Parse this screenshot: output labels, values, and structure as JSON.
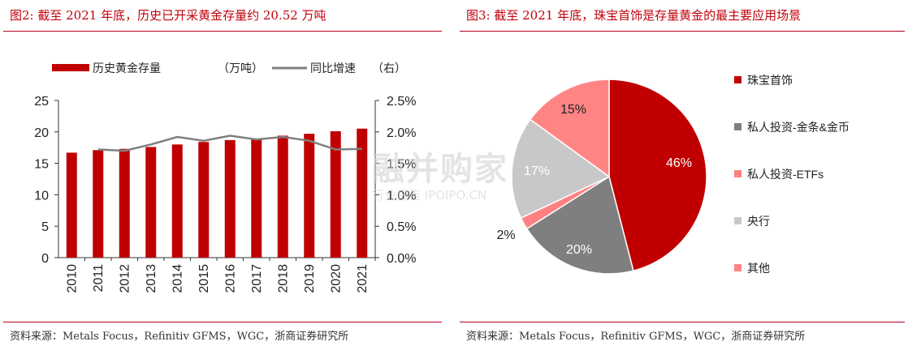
{
  "left": {
    "title": "图2:  截至 2021 年底，历史已开采黄金存量约 20.52 万吨",
    "source": "资料来源：Metals Focus，Refinitiv GFMS，WGC，浙商证券研究所",
    "legend": {
      "bar_label": "历史黄金存量",
      "bar_unit": "（万吨）",
      "line_label": "同比增速",
      "line_unit": "（右）"
    }
  },
  "right": {
    "title": "图3:  截至 2021 年底，珠宝首饰是存量黄金的最主要应用场景",
    "source": "资料来源：Metals Focus，Refinitiv GFMS，WGC，浙商证券研究所"
  },
  "watermark": {
    "main": "融并购家",
    "sub": "行业报告  IPOIPO.CN"
  },
  "chart_data": [
    {
      "type": "bar",
      "categories": [
        "2010",
        "2011",
        "2012",
        "2013",
        "2014",
        "2015",
        "2016",
        "2017",
        "2018",
        "2019",
        "2020",
        "2021"
      ],
      "series": [
        {
          "name": "历史黄金存量（万吨）",
          "type": "bar",
          "axis": "left",
          "color": "#c00000",
          "values": [
            16.7,
            17.1,
            17.3,
            17.6,
            18.0,
            18.4,
            18.7,
            18.9,
            19.4,
            19.7,
            20.1,
            20.52
          ]
        },
        {
          "name": "同比增速（右）",
          "type": "line",
          "axis": "right",
          "color": "#7f7f7f",
          "values": [
            null,
            1.72,
            1.7,
            1.8,
            1.92,
            1.86,
            1.94,
            1.88,
            1.92,
            1.86,
            1.72,
            1.73
          ]
        }
      ],
      "ylim": [
        0,
        25
      ],
      "yticks": [
        "0",
        "5",
        "10",
        "15",
        "20",
        "25"
      ],
      "y2lim": [
        0,
        2.5
      ],
      "y2ticks": [
        "0.0%",
        "0.5%",
        "1.0%",
        "1.5%",
        "2.0%",
        "2.5%"
      ],
      "grid": false,
      "legend_position": "top"
    },
    {
      "type": "pie",
      "slices": [
        {
          "label": "珠宝首饰",
          "value": 46,
          "text": "46%",
          "color": "#c00000"
        },
        {
          "label": "私人投资-金条&金币",
          "value": 20,
          "text": "20%",
          "color": "#7f7f7f"
        },
        {
          "label": "私人投资-ETFs",
          "value": 2,
          "text": "2%",
          "color": "#ff8080"
        },
        {
          "label": "央行",
          "value": 17,
          "text": "17%",
          "color": "#c8c8c8"
        },
        {
          "label": "其他",
          "value": 15,
          "text": "15%",
          "color": "#ff8585"
        }
      ],
      "legend_position": "right"
    }
  ]
}
